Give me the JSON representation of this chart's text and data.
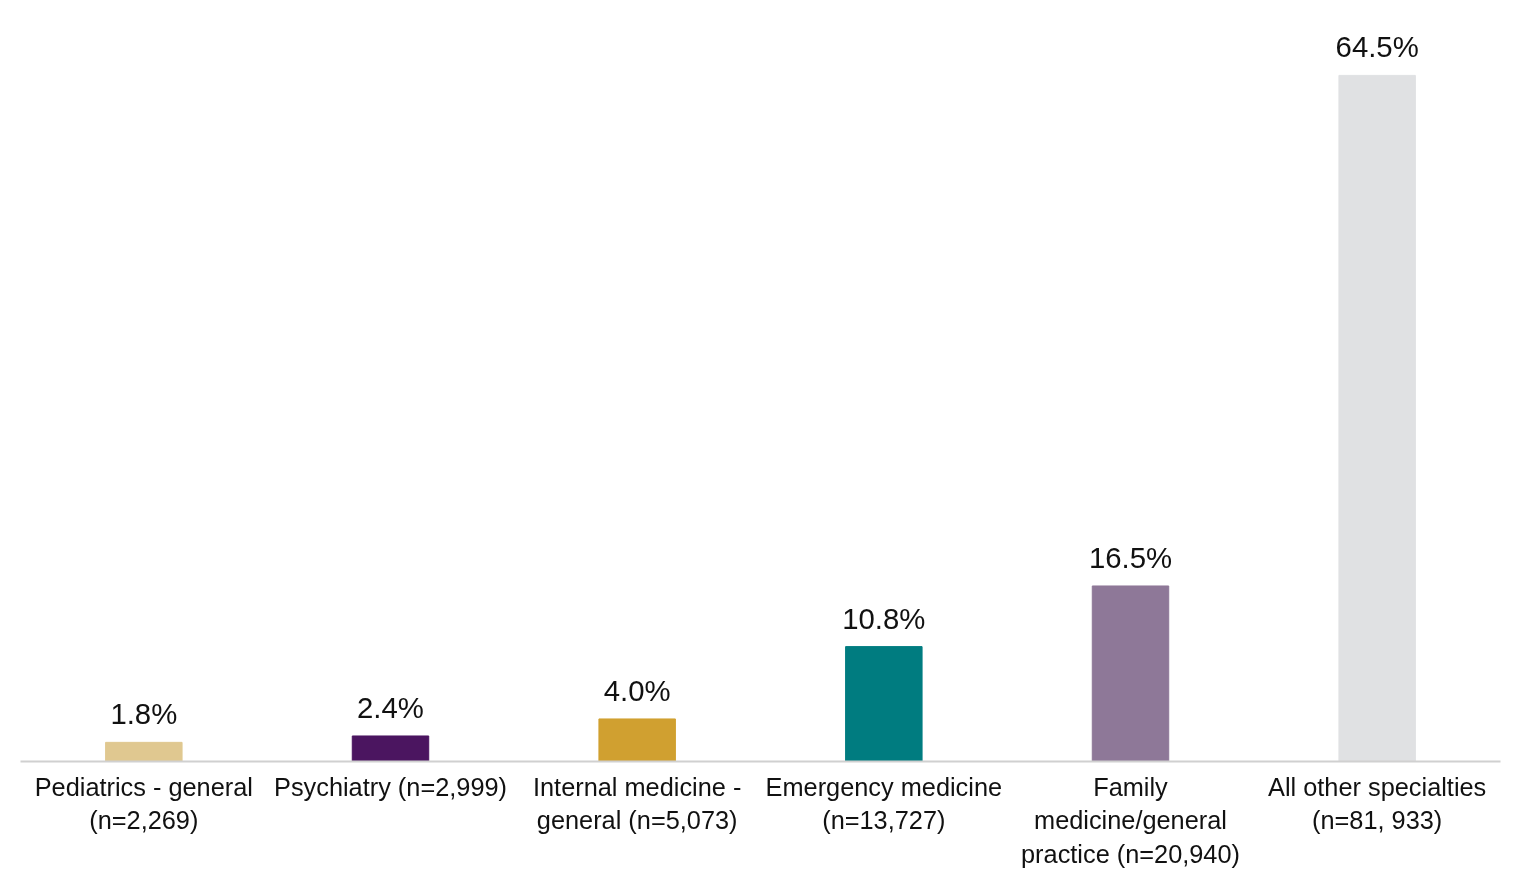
{
  "chart_data": {
    "type": "bar",
    "categories": [
      "Pediatrics - general (n=2,269)",
      "Psychiatry (n=2,999)",
      "Internal medicine - general (n=5,073)",
      "Emergency medicine (n=13,727)",
      "Family medicine/general practice (n=20,940)",
      "All other specialties (n=81, 933)"
    ],
    "values": [
      1.8,
      2.4,
      4.0,
      10.8,
      16.5,
      64.5
    ],
    "colors": [
      "#e0c890",
      "#4b1560",
      "#d0a030",
      "#007c80",
      "#8e7898",
      "#e0e1e3"
    ],
    "data_labels": true,
    "value_labels": [
      "1.8%",
      "2.4%",
      "4.0%",
      "10.8%",
      "16.5%",
      "64.5%"
    ],
    "grid": false
  }
}
